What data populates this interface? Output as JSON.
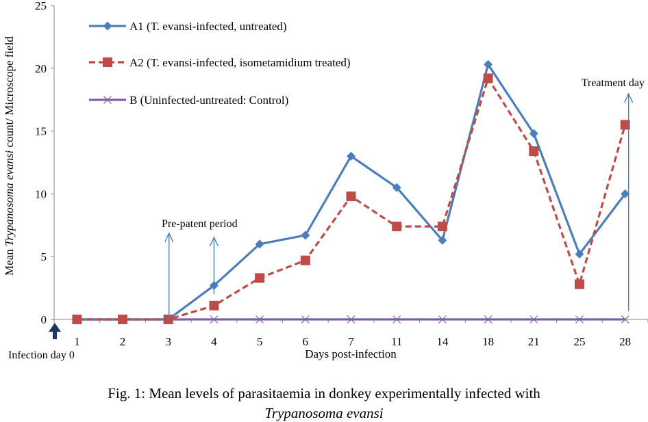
{
  "chart_data": {
    "type": "line",
    "categories": [
      "1",
      "2",
      "3",
      "4",
      "5",
      "6",
      "7",
      "11",
      "14",
      "18",
      "21",
      "25",
      "28"
    ],
    "series": [
      {
        "name": "A1 (T. evansi-infected, untreated)",
        "color": "#4a7ebb",
        "marker": "diamond",
        "line_style": "solid",
        "values": [
          0,
          0,
          0,
          2.7,
          6.0,
          6.7,
          13.0,
          10.5,
          6.3,
          20.3,
          14.8,
          5.2,
          10.0
        ]
      },
      {
        "name": "A2 (T. evansi-infected, isometamidium treated)",
        "color": "#be4b48",
        "marker": "square",
        "line_style": "dashed",
        "values": [
          0,
          0,
          0,
          1.1,
          3.3,
          4.7,
          9.8,
          7.4,
          7.4,
          19.2,
          13.4,
          2.8,
          15.5
        ]
      },
      {
        "name": "B (Uninfected-untreated: Control)",
        "color": "#7f5fa8",
        "marker": "x",
        "line_style": "solid",
        "values": [
          0,
          0,
          0,
          0,
          0,
          0,
          0,
          0,
          0,
          0,
          0,
          0,
          0
        ]
      }
    ],
    "xlabel": "Days  post-infection",
    "ylabel_prefix": "Mean ",
    "ylabel_italic": "Trypanosoma evansi",
    "ylabel_suffix": " count/ Microscope  field",
    "ylim": [
      0,
      25
    ],
    "yticks": [
      "0",
      "5",
      "10",
      "15",
      "20",
      "25"
    ],
    "grid": false,
    "legend_position": "top-left",
    "annotations": {
      "pre_patent": "Pre-patent period",
      "treatment": "Treatment day",
      "infection": "Infection day 0"
    }
  },
  "caption": {
    "line1": "Fig. 1: Mean  levels of  parasitaemia in donkey experimentally infected with",
    "line2": "Trypanosoma evansi"
  }
}
